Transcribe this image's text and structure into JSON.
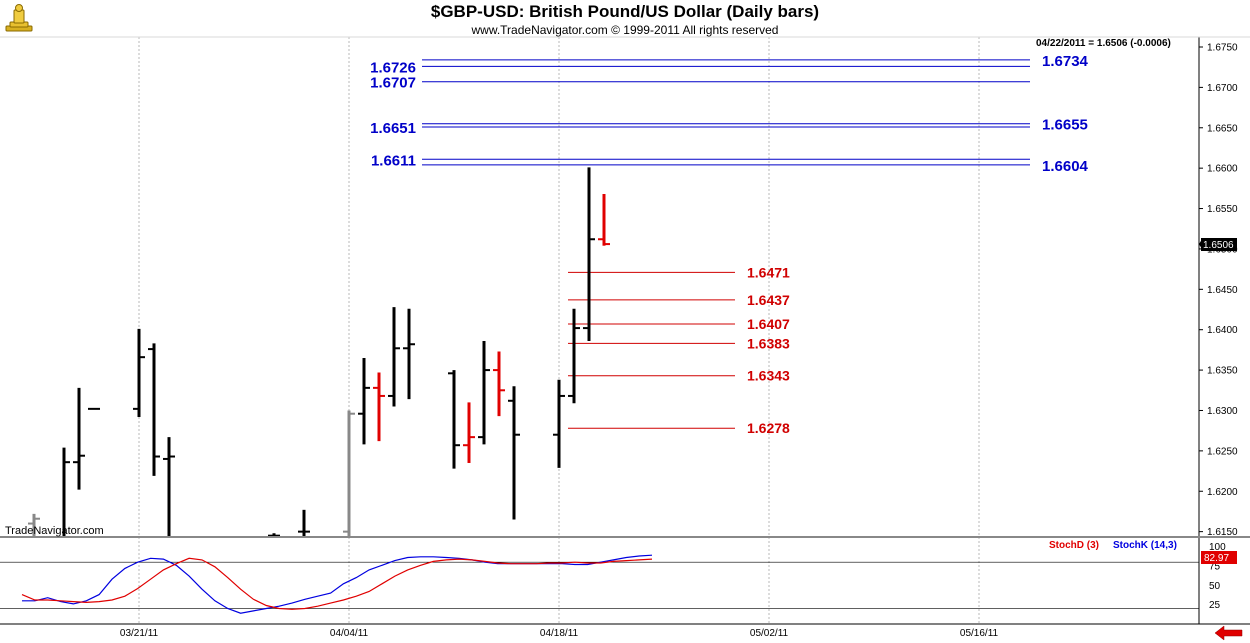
{
  "header": {
    "title": "$GBP-USD:  British Pound/US Dollar  (Daily bars)",
    "subtitle": "www.TradeNavigator.com © 1999-2011 All rights reserved"
  },
  "quote_readout": "04/22/2011 = 1.6506 (-0.0006)",
  "last_price_tag": "1.6506",
  "watermark": "TradeNavigator.com",
  "colors": {
    "up_bar": "#000000",
    "down_bar": "#e00000",
    "gray_bar": "#888888",
    "resistance_line": "#0000c8",
    "support_line": "#d00000",
    "stoch_d": "#e00000",
    "stoch_k": "#0000e0",
    "stoch_tag_bg": "#e00000"
  },
  "indicator": {
    "stochd_label": "StochD (3)",
    "stochk_label": "StochK (14,3)",
    "last_value": "82.97",
    "y_ticks": [
      "100",
      "75",
      "50",
      "25"
    ]
  },
  "chart_data": {
    "type": "ohlc",
    "ylim": [
      1.614,
      1.6765
    ],
    "y_ticks": [
      "1.6150",
      "1.6200",
      "1.6250",
      "1.6300",
      "1.6350",
      "1.6400",
      "1.6450",
      "1.6500",
      "1.6550",
      "1.6600",
      "1.6650",
      "1.6700",
      "1.6750"
    ],
    "x_ticks": [
      "03/21/11",
      "04/04/11",
      "04/18/11",
      "05/02/11",
      "05/16/11"
    ],
    "bars": [
      {
        "date": "03/10/11",
        "open": 1.6145,
        "high": 1.6198,
        "low": 1.6135,
        "close": 1.6172,
        "color": "black"
      },
      {
        "date": "03/11/11",
        "open": 1.6168,
        "high": 1.6185,
        "low": 1.6135,
        "close": 1.6172,
        "color": "black"
      },
      {
        "date": "03/14/11",
        "open": 1.616,
        "high": 1.6172,
        "low": 1.6135,
        "close": 1.6166,
        "color": "gray"
      },
      {
        "date": "03/16/11",
        "open": 1.614,
        "high": 1.6254,
        "low": 1.6135,
        "close": 1.6236,
        "color": "black"
      },
      {
        "date": "03/17/11",
        "open": 1.6236,
        "high": 1.6328,
        "low": 1.6202,
        "close": 1.6244,
        "color": "black"
      },
      {
        "date": "03/18/11",
        "open": 1.6302,
        "high": 1.6302,
        "low": 1.6302,
        "close": 1.6302,
        "color": "black"
      },
      {
        "date": "03/21/11",
        "open": 1.6302,
        "high": 1.6401,
        "low": 1.6292,
        "close": 1.6366,
        "color": "black"
      },
      {
        "date": "03/22/11",
        "open": 1.6376,
        "high": 1.6383,
        "low": 1.6219,
        "close": 1.6243,
        "color": "black"
      },
      {
        "date": "03/23/11",
        "open": 1.624,
        "high": 1.6267,
        "low": 1.6135,
        "close": 1.6243,
        "color": "black"
      },
      {
        "date": "03/30/11",
        "open": 1.6145,
        "high": 1.6148,
        "low": 1.614,
        "close": 1.6145,
        "color": "black"
      },
      {
        "date": "04/01/11",
        "open": 1.615,
        "high": 1.6177,
        "low": 1.614,
        "close": 1.615,
        "color": "black"
      },
      {
        "date": "04/04/11",
        "open": 1.615,
        "high": 1.63,
        "low": 1.614,
        "close": 1.6296,
        "color": "gray"
      },
      {
        "date": "04/05/11",
        "open": 1.6296,
        "high": 1.6365,
        "low": 1.6258,
        "close": 1.6328,
        "color": "black"
      },
      {
        "date": "04/06/11",
        "open": 1.6328,
        "high": 1.6347,
        "low": 1.6262,
        "close": 1.6318,
        "color": "red"
      },
      {
        "date": "04/07/11",
        "open": 1.6318,
        "high": 1.6428,
        "low": 1.6305,
        "close": 1.6377,
        "color": "black"
      },
      {
        "date": "04/08/11",
        "open": 1.6377,
        "high": 1.6426,
        "low": 1.6314,
        "close": 1.6382,
        "color": "black"
      },
      {
        "date": "04/11/11",
        "open": 1.6346,
        "high": 1.635,
        "low": 1.6228,
        "close": 1.6257,
        "color": "black"
      },
      {
        "date": "04/12/11",
        "open": 1.6257,
        "high": 1.631,
        "low": 1.6235,
        "close": 1.6267,
        "color": "red"
      },
      {
        "date": "04/13/11",
        "open": 1.6267,
        "high": 1.6386,
        "low": 1.6258,
        "close": 1.635,
        "color": "black"
      },
      {
        "date": "04/14/11",
        "open": 1.635,
        "high": 1.6373,
        "low": 1.6293,
        "close": 1.6325,
        "color": "red"
      },
      {
        "date": "04/15/11",
        "open": 1.6312,
        "high": 1.633,
        "low": 1.6165,
        "close": 1.627,
        "color": "black"
      },
      {
        "date": "04/18/11",
        "open": 1.627,
        "high": 1.6338,
        "low": 1.6229,
        "close": 1.6318,
        "color": "black"
      },
      {
        "date": "04/19/11",
        "open": 1.6318,
        "high": 1.6426,
        "low": 1.6309,
        "close": 1.6402,
        "color": "black"
      },
      {
        "date": "04/20/11",
        "open": 1.6402,
        "high": 1.6601,
        "low": 1.6386,
        "close": 1.6512,
        "color": "black"
      },
      {
        "date": "04/21/11",
        "open": 1.6512,
        "high": 1.6568,
        "low": 1.6504,
        "close": 1.6506,
        "color": "red"
      }
    ],
    "resistance_levels": [
      {
        "label": "1.6726",
        "side": "left"
      },
      {
        "label": "1.6707",
        "side": "left"
      },
      {
        "label": "1.6651",
        "side": "left"
      },
      {
        "label": "1.6611",
        "side": "left"
      },
      {
        "label": "1.6734",
        "side": "right"
      },
      {
        "label": "1.6655",
        "side": "right"
      },
      {
        "label": "1.6604",
        "side": "right"
      }
    ],
    "support_levels": [
      "1.6471",
      "1.6437",
      "1.6407",
      "1.6383",
      "1.6343",
      "1.6278"
    ],
    "stochastic": {
      "stoch_d": [
        38,
        31,
        31,
        30,
        29,
        28,
        29,
        31,
        36,
        46,
        58,
        70,
        78,
        85,
        83,
        74,
        60,
        45,
        32,
        24,
        20,
        19,
        20,
        23,
        27,
        31,
        36,
        42,
        52,
        62,
        70,
        76,
        81,
        83,
        84,
        83,
        81,
        79,
        78,
        78,
        78,
        79,
        79,
        80,
        79,
        79,
        81,
        82,
        83,
        84
      ],
      "stoch_k": [
        30,
        30,
        34,
        29,
        26,
        30,
        38,
        58,
        72,
        80,
        85,
        84,
        76,
        62,
        45,
        30,
        20,
        14,
        17,
        20,
        23,
        27,
        32,
        36,
        40,
        52,
        60,
        70,
        76,
        82,
        86,
        87,
        87,
        86,
        85,
        83,
        80,
        78,
        78,
        78,
        78,
        78,
        78,
        77,
        77,
        80,
        83,
        86,
        88,
        89
      ],
      "ylim": [
        0,
        110
      ]
    }
  }
}
